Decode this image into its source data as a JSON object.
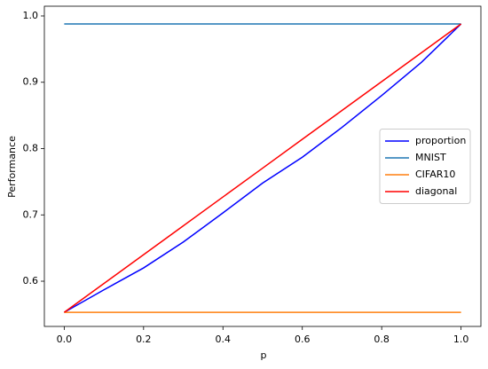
{
  "chart_data": {
    "type": "line",
    "xlabel": "p",
    "ylabel": "Performance",
    "x": [
      0,
      0.1,
      0.2,
      0.3,
      0.4,
      0.5,
      0.6,
      0.7,
      0.8,
      0.9,
      1.0
    ],
    "series": [
      {
        "name": "proportion",
        "color": "#0000ff",
        "values": [
          0.553,
          0.587,
          0.62,
          0.659,
          0.703,
          0.748,
          0.787,
          0.832,
          0.88,
          0.93,
          0.988
        ]
      },
      {
        "name": "MNIST",
        "color": "#1f77b4",
        "values": [
          0.988,
          0.988,
          0.988,
          0.988,
          0.988,
          0.988,
          0.988,
          0.988,
          0.988,
          0.988,
          0.988
        ]
      },
      {
        "name": "CIFAR10",
        "color": "#ff7f0e",
        "values": [
          0.553,
          0.553,
          0.553,
          0.553,
          0.553,
          0.553,
          0.553,
          0.553,
          0.553,
          0.553,
          0.553
        ]
      },
      {
        "name": "diagonal",
        "color": "#ff0000",
        "values": [
          0.553,
          0.5965,
          0.64,
          0.6835,
          0.727,
          0.7705,
          0.814,
          0.8575,
          0.901,
          0.9445,
          0.988
        ]
      }
    ],
    "xlim": [
      -0.05,
      1.05
    ],
    "ylim": [
      0.5318,
      1.0147
    ],
    "xticks": [
      {
        "value": 0,
        "label": "0.0"
      },
      {
        "value": 0.2,
        "label": "0.2"
      },
      {
        "value": 0.4,
        "label": "0.4"
      },
      {
        "value": 0.6,
        "label": "0.6"
      },
      {
        "value": 0.8,
        "label": "0.8"
      },
      {
        "value": 1,
        "label": "1.0"
      }
    ],
    "yticks": [
      0.6,
      0.7,
      0.8,
      0.9,
      {
        "value": 1,
        "label": "1.0"
      }
    ],
    "legend": "center right",
    "grid": false
  }
}
